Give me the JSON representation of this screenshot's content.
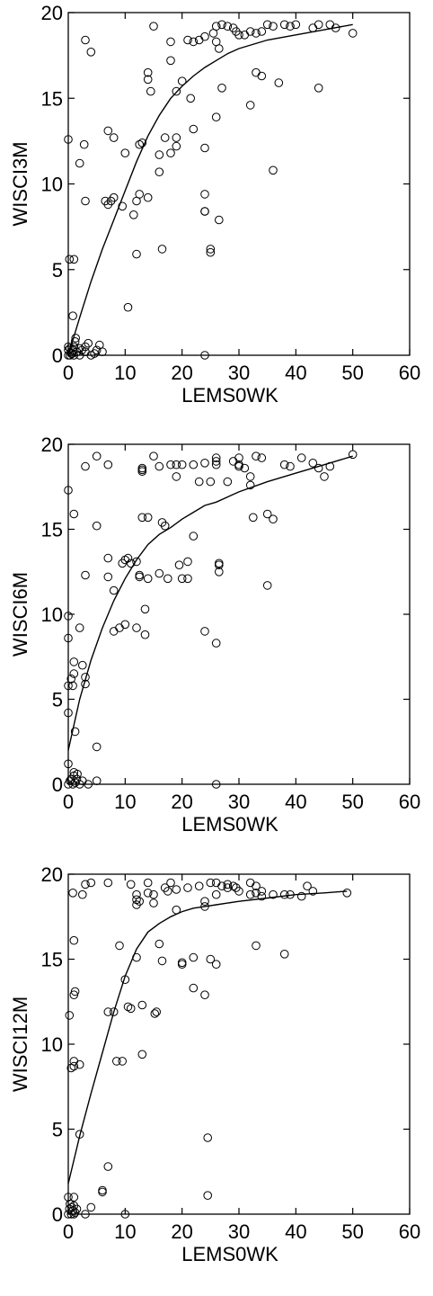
{
  "chart_data": [
    {
      "type": "scatter",
      "xlabel": "LEMS0WK",
      "ylabel": "WISCI3M",
      "xlim": [
        0,
        60
      ],
      "ylim": [
        0,
        20
      ],
      "xticks": [
        0,
        10,
        20,
        30,
        40,
        50,
        60
      ],
      "yticks": [
        0,
        5,
        10,
        15,
        20
      ],
      "grid": false,
      "points": [
        [
          0,
          0
        ],
        [
          0,
          0.3
        ],
        [
          0,
          0.5
        ],
        [
          0.3,
          0
        ],
        [
          0.5,
          0.1
        ],
        [
          0.8,
          0.3
        ],
        [
          1,
          0
        ],
        [
          1,
          0.5
        ],
        [
          1.3,
          1
        ],
        [
          1.5,
          0.2
        ],
        [
          2,
          0
        ],
        [
          2,
          0.4
        ],
        [
          3,
          0.2
        ],
        [
          3,
          0.5
        ],
        [
          3.5,
          0.7
        ],
        [
          4,
          0
        ],
        [
          5,
          0.3
        ],
        [
          5.5,
          0.6
        ],
        [
          6,
          0.2
        ],
        [
          0.3,
          0.4
        ],
        [
          0.7,
          0.1
        ],
        [
          1.2,
          0.8
        ],
        [
          2.4,
          0.3
        ],
        [
          4.6,
          0.1
        ],
        [
          0.2,
          5.6
        ],
        [
          1,
          5.6
        ],
        [
          0.8,
          2.3
        ],
        [
          0,
          12.6
        ],
        [
          2,
          11.2
        ],
        [
          2.8,
          12.3
        ],
        [
          3,
          18.4
        ],
        [
          4,
          17.7
        ],
        [
          3,
          9
        ],
        [
          6.5,
          9
        ],
        [
          7,
          8.8
        ],
        [
          8,
          9.2
        ],
        [
          7.5,
          9
        ],
        [
          7,
          13.1
        ],
        [
          8,
          12.7
        ],
        [
          10,
          11.8
        ],
        [
          9.5,
          8.7
        ],
        [
          10.5,
          2.8
        ],
        [
          11.5,
          8.2
        ],
        [
          12,
          9
        ],
        [
          12.5,
          9.4
        ],
        [
          14,
          9.2
        ],
        [
          12,
          5.9
        ],
        [
          12.5,
          12.3
        ],
        [
          13,
          12.4
        ],
        [
          14,
          16.1
        ],
        [
          14,
          16.5
        ],
        [
          14.5,
          15.4
        ],
        [
          15,
          19.2
        ],
        [
          16,
          11.7
        ],
        [
          16,
          10.7
        ],
        [
          17,
          12.7
        ],
        [
          16.5,
          6.2
        ],
        [
          18,
          11.8
        ],
        [
          18,
          17.2
        ],
        [
          18,
          18.3
        ],
        [
          19,
          12.7
        ],
        [
          19,
          15.4
        ],
        [
          19,
          12.2
        ],
        [
          20,
          16
        ],
        [
          21,
          18.4
        ],
        [
          21.5,
          15
        ],
        [
          22,
          18.3
        ],
        [
          22,
          13.2
        ],
        [
          23,
          18.4
        ],
        [
          24,
          18.6
        ],
        [
          24,
          12.1
        ],
        [
          24,
          9.4
        ],
        [
          24,
          8.4
        ],
        [
          24,
          8.4
        ],
        [
          24,
          0
        ],
        [
          25,
          6
        ],
        [
          25,
          6.2
        ],
        [
          25.5,
          18.8
        ],
        [
          26,
          13.9
        ],
        [
          26,
          18.3
        ],
        [
          26,
          19.2
        ],
        [
          26.5,
          7.9
        ],
        [
          26.5,
          17.9
        ],
        [
          27,
          19.3
        ],
        [
          27,
          15.6
        ],
        [
          28,
          19.2
        ],
        [
          29,
          19.1
        ],
        [
          29.5,
          18.9
        ],
        [
          30,
          18.7
        ],
        [
          31,
          18.7
        ],
        [
          32,
          14.6
        ],
        [
          32,
          18.9
        ],
        [
          33,
          18.8
        ],
        [
          33,
          16.5
        ],
        [
          34,
          18.9
        ],
        [
          34,
          16.3
        ],
        [
          35,
          19.3
        ],
        [
          36,
          19.2
        ],
        [
          36,
          10.8
        ],
        [
          37,
          15.9
        ],
        [
          38,
          19.3
        ],
        [
          39,
          19.2
        ],
        [
          40,
          19.3
        ],
        [
          43,
          19.1
        ],
        [
          44,
          19.3
        ],
        [
          44,
          15.6
        ],
        [
          46,
          19.3
        ],
        [
          47,
          19.1
        ],
        [
          50,
          18.8
        ]
      ],
      "fit_line": {
        "x": [
          0,
          2,
          4,
          6,
          8,
          10,
          12,
          14,
          16,
          18,
          20,
          22,
          24,
          26,
          28,
          30,
          35,
          40,
          45,
          50
        ],
        "y": [
          0,
          2.2,
          4.3,
          6.2,
          7.9,
          9.6,
          11.3,
          12.8,
          14,
          15,
          15.7,
          16.3,
          16.8,
          17.2,
          17.6,
          17.9,
          18.4,
          18.7,
          19,
          19.3
        ]
      }
    },
    {
      "type": "scatter",
      "xlabel": "LEMS0WK",
      "ylabel": "WISCI6M",
      "xlim": [
        0,
        60
      ],
      "ylim": [
        0,
        20
      ],
      "xticks": [
        0,
        10,
        20,
        30,
        40,
        50,
        60
      ],
      "yticks": [
        0,
        5,
        10,
        15,
        20
      ],
      "grid": false,
      "points": [
        [
          0,
          0
        ],
        [
          0.3,
          0.2
        ],
        [
          0.8,
          0
        ],
        [
          1,
          0.5
        ],
        [
          1.2,
          0.1
        ],
        [
          1.5,
          0.3
        ],
        [
          2,
          0
        ],
        [
          2.5,
          0.2
        ],
        [
          0,
          1.2
        ],
        [
          0.5,
          0.3
        ],
        [
          1,
          0.7
        ],
        [
          3.5,
          0
        ],
        [
          5,
          0.2
        ],
        [
          1.6,
          0.6
        ],
        [
          0,
          4.2
        ],
        [
          0,
          5.8
        ],
        [
          0.8,
          5.8
        ],
        [
          0.5,
          6.2
        ],
        [
          1,
          6.5
        ],
        [
          1.2,
          3.1
        ],
        [
          1,
          7.2
        ],
        [
          2.5,
          7
        ],
        [
          3,
          5.9
        ],
        [
          3,
          6.3
        ],
        [
          0,
          8.6
        ],
        [
          0,
          9.9
        ],
        [
          0,
          17.3
        ],
        [
          1,
          15.9
        ],
        [
          2,
          9.2
        ],
        [
          3,
          12.3
        ],
        [
          3,
          18.7
        ],
        [
          5,
          19.3
        ],
        [
          5,
          15.2
        ],
        [
          5,
          2.2
        ],
        [
          7,
          13.3
        ],
        [
          7,
          18.8
        ],
        [
          7,
          12.2
        ],
        [
          8,
          11.4
        ],
        [
          8,
          9
        ],
        [
          9,
          9.2
        ],
        [
          9.5,
          13
        ],
        [
          10,
          9.4
        ],
        [
          10,
          13.2
        ],
        [
          10.5,
          13.3
        ],
        [
          11,
          13
        ],
        [
          12,
          13.1
        ],
        [
          12,
          9.2
        ],
        [
          12.5,
          12.2
        ],
        [
          12.5,
          12.3
        ],
        [
          13,
          18.5
        ],
        [
          13,
          18.6
        ],
        [
          13,
          18.4
        ],
        [
          13,
          15.7
        ],
        [
          13.5,
          8.8
        ],
        [
          13.5,
          10.3
        ],
        [
          14,
          15.7
        ],
        [
          14,
          12.1
        ],
        [
          15,
          19.3
        ],
        [
          16,
          18.7
        ],
        [
          16,
          12.4
        ],
        [
          16.5,
          15.4
        ],
        [
          17,
          15.2
        ],
        [
          17.5,
          12.1
        ],
        [
          18,
          18.8
        ],
        [
          19,
          18.8
        ],
        [
          19,
          18.1
        ],
        [
          19.5,
          12.9
        ],
        [
          20,
          12.1
        ],
        [
          20,
          18.8
        ],
        [
          21,
          12.1
        ],
        [
          21,
          13.1
        ],
        [
          22,
          14.6
        ],
        [
          22,
          18.8
        ],
        [
          23,
          17.8
        ],
        [
          24,
          9
        ],
        [
          24,
          18.9
        ],
        [
          25,
          17.8
        ],
        [
          26,
          19.2
        ],
        [
          26,
          19
        ],
        [
          26,
          18.8
        ],
        [
          26,
          8.3
        ],
        [
          26,
          0
        ],
        [
          26.5,
          12.5
        ],
        [
          26.5,
          13
        ],
        [
          26.5,
          12.9
        ],
        [
          28,
          17.8
        ],
        [
          29,
          19
        ],
        [
          30,
          18.8
        ],
        [
          30,
          18.7
        ],
        [
          30,
          19.2
        ],
        [
          31,
          18.6
        ],
        [
          32,
          17.6
        ],
        [
          32,
          18.1
        ],
        [
          32.5,
          15.7
        ],
        [
          33,
          19.3
        ],
        [
          34,
          19.2
        ],
        [
          35,
          11.7
        ],
        [
          35,
          15.9
        ],
        [
          36,
          15.6
        ],
        [
          38,
          18.8
        ],
        [
          39,
          18.7
        ],
        [
          41,
          19.2
        ],
        [
          43,
          18.9
        ],
        [
          44,
          18.6
        ],
        [
          45,
          18.1
        ],
        [
          46,
          18.7
        ],
        [
          50,
          19.4
        ]
      ],
      "fit_line": {
        "x": [
          0,
          2,
          4,
          6,
          8,
          10,
          12,
          14,
          16,
          18,
          20,
          22,
          24,
          26,
          28,
          30,
          35,
          40,
          45,
          50
        ],
        "y": [
          2,
          5,
          7.3,
          9.2,
          10.8,
          12.1,
          13.2,
          14.1,
          14.7,
          15.1,
          15.6,
          16,
          16.4,
          16.6,
          16.9,
          17.2,
          17.8,
          18.3,
          18.8,
          19.3
        ]
      }
    },
    {
      "type": "scatter",
      "xlabel": "LEMS0WK",
      "ylabel": "WISCI12M",
      "xlim": [
        0,
        60
      ],
      "ylim": [
        0,
        20
      ],
      "xticks": [
        0,
        10,
        20,
        30,
        40,
        50,
        60
      ],
      "yticks": [
        0,
        5,
        10,
        15,
        20
      ],
      "grid": false,
      "points": [
        [
          0,
          0
        ],
        [
          0.2,
          0.3
        ],
        [
          0.5,
          0
        ],
        [
          0.8,
          0.2
        ],
        [
          1,
          0.5
        ],
        [
          1.2,
          0.1
        ],
        [
          0,
          1
        ],
        [
          1,
          1
        ],
        [
          1,
          0
        ],
        [
          3,
          0
        ],
        [
          4,
          0.4
        ],
        [
          0.3,
          0.6
        ],
        [
          0.6,
          0.4
        ],
        [
          1.5,
          0.3
        ],
        [
          2,
          4.7
        ],
        [
          6,
          1.3
        ],
        [
          6,
          1.4
        ],
        [
          7,
          2.8
        ],
        [
          10,
          0
        ],
        [
          0.2,
          11.7
        ],
        [
          0.5,
          8.6
        ],
        [
          1,
          8.7
        ],
        [
          1,
          9
        ],
        [
          1.2,
          13.1
        ],
        [
          1,
          12.9
        ],
        [
          1,
          16.1
        ],
        [
          0.8,
          18.9
        ],
        [
          2.5,
          18.8
        ],
        [
          3,
          19.4
        ],
        [
          4,
          19.5
        ],
        [
          2,
          8.8
        ],
        [
          7,
          11.9
        ],
        [
          7,
          19.5
        ],
        [
          8,
          11.9
        ],
        [
          8.5,
          9
        ],
        [
          9,
          15.8
        ],
        [
          9.5,
          9
        ],
        [
          10,
          13.8
        ],
        [
          10.5,
          12.2
        ],
        [
          11,
          12.1
        ],
        [
          11,
          19.4
        ],
        [
          12,
          18.8
        ],
        [
          12,
          15.1
        ],
        [
          12,
          18.5
        ],
        [
          12,
          18.2
        ],
        [
          12.5,
          18.4
        ],
        [
          13,
          12.3
        ],
        [
          13,
          9.4
        ],
        [
          14,
          19.5
        ],
        [
          14,
          18.9
        ],
        [
          15,
          18.8
        ],
        [
          15,
          18.3
        ],
        [
          15.2,
          11.8
        ],
        [
          15.5,
          11.9
        ],
        [
          16,
          15.9
        ],
        [
          16.5,
          14.9
        ],
        [
          17,
          19.2
        ],
        [
          17.5,
          19
        ],
        [
          18,
          19.5
        ],
        [
          19,
          19.1
        ],
        [
          19,
          17.9
        ],
        [
          20,
          14.8
        ],
        [
          20,
          14.7
        ],
        [
          21,
          19.2
        ],
        [
          22,
          13.3
        ],
        [
          22,
          15.1
        ],
        [
          23,
          19.3
        ],
        [
          24,
          12.9
        ],
        [
          24,
          18.4
        ],
        [
          24,
          18.1
        ],
        [
          24.5,
          1.1
        ],
        [
          24.5,
          4.5
        ],
        [
          25,
          19.5
        ],
        [
          25,
          15
        ],
        [
          26,
          14.7
        ],
        [
          26,
          18.8
        ],
        [
          26,
          19.5
        ],
        [
          27,
          19.3
        ],
        [
          28,
          19.4
        ],
        [
          28,
          19.2
        ],
        [
          29,
          19.3
        ],
        [
          29.5,
          19.2
        ],
        [
          30,
          19
        ],
        [
          32,
          19.5
        ],
        [
          32,
          18.8
        ],
        [
          33,
          19.3
        ],
        [
          33,
          18.9
        ],
        [
          33,
          15.8
        ],
        [
          34,
          19
        ],
        [
          34,
          18.7
        ],
        [
          36,
          18.8
        ],
        [
          38,
          18.8
        ],
        [
          38,
          15.3
        ],
        [
          39,
          18.8
        ],
        [
          41,
          18.7
        ],
        [
          42,
          19.3
        ],
        [
          43,
          19
        ],
        [
          49,
          18.9
        ]
      ],
      "fit_line": {
        "x": [
          0,
          2,
          4,
          6,
          8,
          10,
          12,
          14,
          16,
          18,
          20,
          22,
          24,
          26,
          28,
          30,
          35,
          40,
          45,
          49
        ],
        "y": [
          1.8,
          4.6,
          7.1,
          9.5,
          11.9,
          14,
          15.6,
          16.6,
          17.1,
          17.5,
          17.8,
          18,
          18.1,
          18.2,
          18.3,
          18.4,
          18.6,
          18.8,
          18.9,
          19
        ]
      }
    }
  ]
}
